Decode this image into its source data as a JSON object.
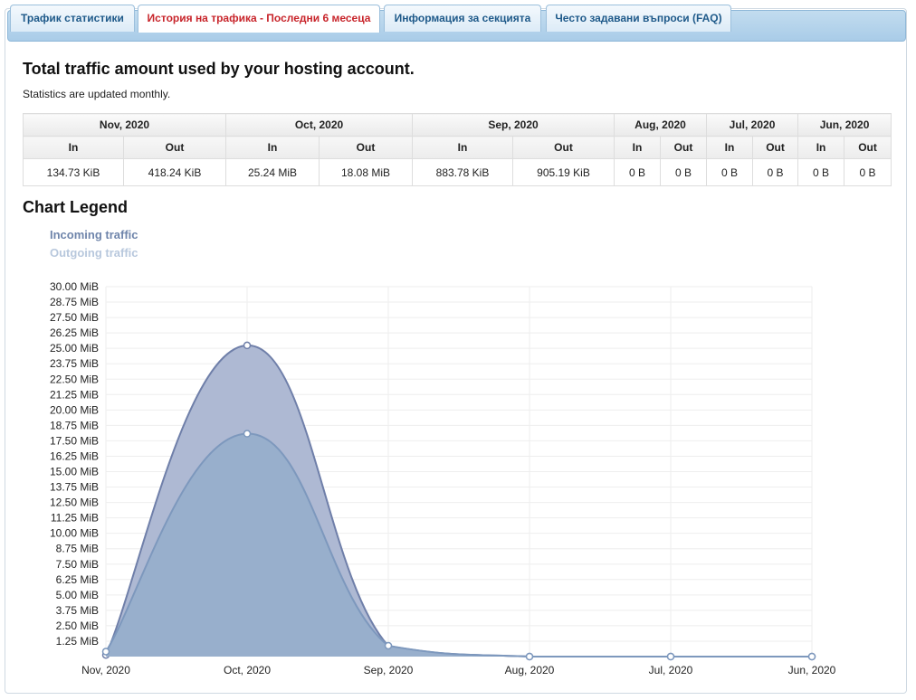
{
  "tabs": [
    {
      "label": "Трафик статистики",
      "active": false
    },
    {
      "label": "История на трафика - Последни 6 месеца",
      "active": true
    },
    {
      "label": "Информация за секцията",
      "active": false
    },
    {
      "label": "Често задавани въпроси (FAQ)",
      "active": false
    }
  ],
  "page": {
    "title": "Total traffic amount used by your hosting account.",
    "subtitle": "Statistics are updated monthly.",
    "legend_title": "Chart Legend",
    "legend": {
      "incoming": "Incoming traffic",
      "outgoing": "Outgoing traffic"
    }
  },
  "table": {
    "months": [
      "Nov, 2020",
      "Oct, 2020",
      "Sep, 2020",
      "Aug, 2020",
      "Jul, 2020",
      "Jun, 2020"
    ],
    "in_label": "In",
    "out_label": "Out",
    "values": {
      "in": [
        "134.73 KiB",
        "25.24 MiB",
        "883.78 KiB",
        "0 B",
        "0 B",
        "0 B"
      ],
      "out": [
        "418.24 KiB",
        "18.08 MiB",
        "905.19 KiB",
        "0 B",
        "0 B",
        "0 B"
      ]
    }
  },
  "colors": {
    "incoming_fill": "#aab5d1",
    "incoming_line": "#6f7fa9",
    "outgoing_fill": "#97aecb",
    "outgoing_line": "#7d98bd",
    "tab_active_text": "#c8252b",
    "tab_text": "#1f5a8a"
  },
  "chart_data": {
    "type": "area",
    "x": [
      "Nov, 2020",
      "Oct, 2020",
      "Sep, 2020",
      "Aug, 2020",
      "Jul, 2020",
      "Jun, 2020"
    ],
    "yticks": [
      "1.25 MiB",
      "2.50 MiB",
      "3.75 MiB",
      "5.00 MiB",
      "6.25 MiB",
      "7.50 MiB",
      "8.75 MiB",
      "10.00 MiB",
      "11.25 MiB",
      "12.50 MiB",
      "13.75 MiB",
      "15.00 MiB",
      "16.25 MiB",
      "17.50 MiB",
      "18.75 MiB",
      "20.00 MiB",
      "21.25 MiB",
      "22.50 MiB",
      "23.75 MiB",
      "25.00 MiB",
      "26.25 MiB",
      "27.50 MiB",
      "28.75 MiB",
      "30.00 MiB"
    ],
    "ylim": [
      0,
      30
    ],
    "y_unit": "MiB",
    "grid": true,
    "series": [
      {
        "name": "Incoming traffic",
        "values": [
          0.132,
          25.24,
          0.863,
          0,
          0,
          0
        ]
      },
      {
        "name": "Outgoing traffic",
        "values": [
          0.408,
          18.08,
          0.884,
          0,
          0,
          0
        ]
      }
    ]
  }
}
